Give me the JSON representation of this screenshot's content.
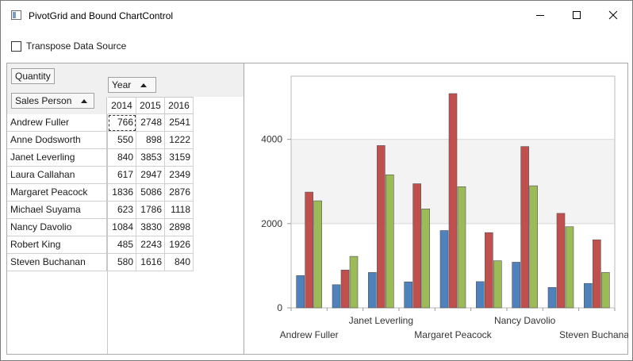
{
  "window": {
    "title": "PivotGrid and Bound ChartControl"
  },
  "options": {
    "transpose_label": "Transpose Data Source",
    "transpose_checked": false
  },
  "pivot": {
    "data_field": "Quantity",
    "column_field": "Year",
    "row_field": "Sales Person",
    "years": [
      "2014",
      "2015",
      "2016"
    ],
    "rows": [
      {
        "name": "Andrew Fuller",
        "values": [
          "766",
          "2748",
          "2541"
        ]
      },
      {
        "name": "Anne Dodsworth",
        "values": [
          "550",
          "898",
          "1222"
        ]
      },
      {
        "name": "Janet Leverling",
        "values": [
          "840",
          "3853",
          "3159"
        ]
      },
      {
        "name": "Laura Callahan",
        "values": [
          "617",
          "2947",
          "2349"
        ]
      },
      {
        "name": "Margaret Peacock",
        "values": [
          "1836",
          "5086",
          "2876"
        ]
      },
      {
        "name": "Michael Suyama",
        "values": [
          "623",
          "1786",
          "1118"
        ]
      },
      {
        "name": "Nancy Davolio",
        "values": [
          "1084",
          "3830",
          "2898"
        ]
      },
      {
        "name": "Robert King",
        "values": [
          "485",
          "2243",
          "1926"
        ]
      },
      {
        "name": "Steven Buchanan",
        "values": [
          "580",
          "1616",
          "840"
        ]
      }
    ]
  },
  "chart_data": {
    "type": "bar",
    "categories": [
      "Andrew Fuller",
      "Anne Dodsworth",
      "Janet Leverling",
      "Laura Callahan",
      "Margaret Peacock",
      "Michael Suyama",
      "Nancy Davolio",
      "Robert King",
      "Steven Buchanan"
    ],
    "series": [
      {
        "values": [
          766,
          550,
          840,
          617,
          1836,
          623,
          1084,
          485,
          580
        ],
        "color": "#4f81bd"
      },
      {
        "values": [
          2748,
          898,
          3853,
          2947,
          5086,
          1786,
          3830,
          2243,
          1616
        ],
        "color": "#c0504d"
      },
      {
        "values": [
          2541,
          1222,
          3159,
          2349,
          2876,
          1118,
          2898,
          1926,
          840
        ],
        "color": "#9bbb59"
      }
    ],
    "ylim": [
      0,
      5500
    ],
    "yticks": [
      "0",
      "2000",
      "4000"
    ],
    "visible_x_labels": [
      {
        "index": 0,
        "text": "Andrew Fuller"
      },
      {
        "index": 2,
        "text": "Janet Leverling"
      },
      {
        "index": 4,
        "text": "Margaret Peacock"
      },
      {
        "index": 6,
        "text": "Nancy Davolio"
      },
      {
        "index": 8,
        "text": "Steven Buchanan"
      }
    ],
    "title": "",
    "xlabel": "",
    "ylabel": ""
  }
}
